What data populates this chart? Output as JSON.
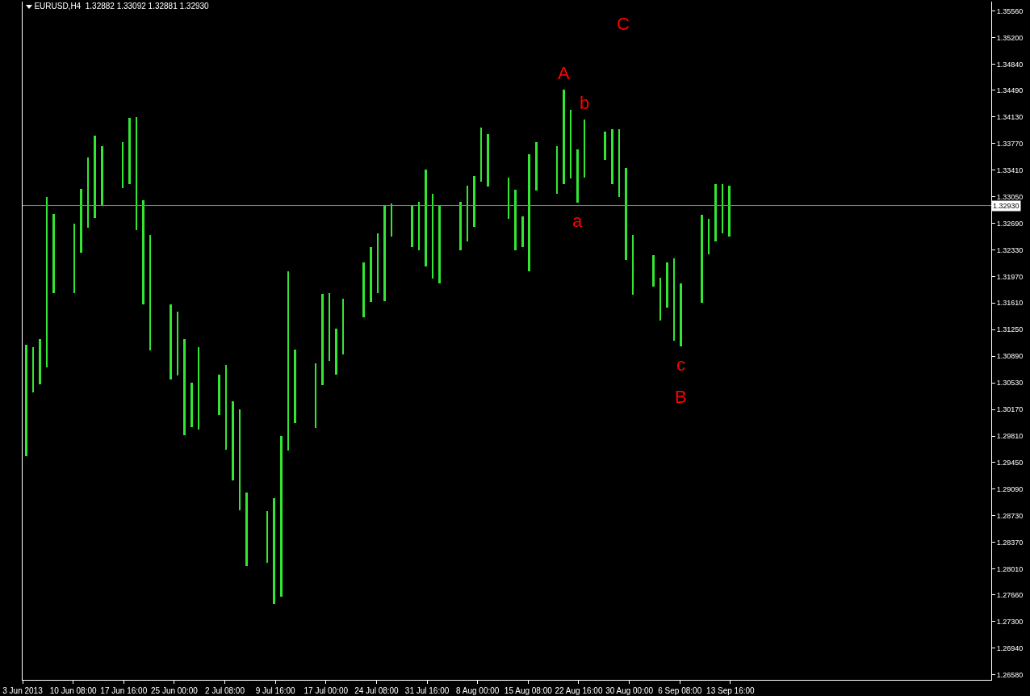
{
  "chart_data": {
    "type": "bar",
    "title": "EURUSD,H4  1.32882 1.33092 1.32881 1.32930",
    "color": "#32e632",
    "x": [
      "2013-06-03T12:00",
      "2013-06-04T12:00",
      "2013-06-05T12:00",
      "2013-06-06T12:00",
      "2013-06-07T12:00",
      "2013-06-10T12:00",
      "2013-06-11T12:00",
      "2013-06-12T12:00",
      "2013-06-13T12:00",
      "2013-06-14T12:00",
      "2013-06-17T12:00",
      "2013-06-18T12:00",
      "2013-06-19T12:00",
      "2013-06-20T12:00",
      "2013-06-21T12:00",
      "2013-06-24T12:00",
      "2013-06-25T12:00",
      "2013-06-26T12:00",
      "2013-06-27T12:00",
      "2013-06-28T12:00",
      "2013-07-01T12:00",
      "2013-07-02T12:00",
      "2013-07-03T12:00",
      "2013-07-04T12:00",
      "2013-07-05T12:00",
      "2013-07-08T12:00",
      "2013-07-09T12:00",
      "2013-07-10T12:00",
      "2013-07-11T12:00",
      "2013-07-12T12:00",
      "2013-07-15T12:00",
      "2013-07-16T12:00",
      "2013-07-17T12:00",
      "2013-07-18T12:00",
      "2013-07-19T12:00",
      "2013-07-22T12:00",
      "2013-07-23T12:00",
      "2013-07-24T12:00",
      "2013-07-25T12:00",
      "2013-07-26T12:00",
      "2013-07-29T12:00",
      "2013-07-30T12:00",
      "2013-07-31T12:00",
      "2013-08-01T12:00",
      "2013-08-02T12:00",
      "2013-08-05T12:00",
      "2013-08-06T12:00",
      "2013-08-07T12:00",
      "2013-08-08T12:00",
      "2013-08-09T12:00",
      "2013-08-12T12:00",
      "2013-08-13T12:00",
      "2013-08-14T12:00",
      "2013-08-15T12:00",
      "2013-08-16T12:00",
      "2013-08-19T12:00",
      "2013-08-20T12:00",
      "2013-08-21T12:00",
      "2013-08-22T12:00",
      "2013-08-23T12:00",
      "2013-08-26T12:00",
      "2013-08-27T12:00",
      "2013-08-28T12:00",
      "2013-08-29T12:00",
      "2013-08-30T12:00",
      "2013-09-02T12:00",
      "2013-09-03T12:00",
      "2013-09-04T12:00",
      "2013-09-05T12:00",
      "2013-09-06T12:00",
      "2013-09-09T12:00",
      "2013-09-10T12:00",
      "2013-09-11T12:00",
      "2013-09-12T12:00",
      "2013-09-13T12:00"
    ],
    "base": [
      1.2954,
      1.304,
      1.3051,
      1.3074,
      1.3175,
      1.3175,
      1.3229,
      1.3263,
      1.3276,
      1.3293,
      1.3317,
      1.3322,
      1.326,
      1.3159,
      1.3097,
      1.3058,
      1.3063,
      1.2982,
      1.2993,
      1.299,
      1.301,
      1.2963,
      1.2921,
      1.2881,
      1.2805,
      1.2809,
      1.2754,
      1.2764,
      1.2961,
      1.2999,
      1.2992,
      1.305,
      1.3083,
      1.3064,
      1.3091,
      1.3142,
      1.3162,
      1.3175,
      1.3164,
      1.3251,
      1.3237,
      1.3232,
      1.3211,
      1.3194,
      1.3188,
      1.3232,
      1.3244,
      1.3264,
      1.3325,
      1.3319,
      1.3275,
      1.3232,
      1.3237,
      1.3204,
      1.3313,
      1.3309,
      1.3322,
      1.333,
      1.3297,
      1.3331,
      1.3355,
      1.3322,
      1.3304,
      1.3219,
      1.3172,
      1.3183,
      1.3137,
      1.3155,
      1.311,
      1.3102,
      1.3161,
      1.3227,
      1.3244,
      1.3255,
      1.3251
    ],
    "values": [
      0.0151,
      0.0061,
      0.0061,
      0.023,
      0.0107,
      0.0093,
      0.0086,
      0.0095,
      0.0112,
      0.008,
      0.0062,
      0.009,
      0.0153,
      0.0141,
      0.0156,
      0.0101,
      0.0086,
      0.013,
      0.006,
      0.0111,
      0.0054,
      0.0114,
      0.0107,
      0.0136,
      0.01,
      0.007,
      0.0143,
      0.0217,
      0.0243,
      0.0099,
      0.0087,
      0.0123,
      0.0092,
      0.0062,
      0.0076,
      0.0074,
      0.0075,
      0.008,
      0.0129,
      0.0045,
      0.0057,
      0.0066,
      0.0131,
      0.0115,
      0.0105,
      0.0066,
      0.0076,
      0.0069,
      0.0073,
      0.0071,
      0.0056,
      0.0082,
      0.0041,
      0.0158,
      0.0066,
      0.0064,
      0.0128,
      0.0093,
      0.0072,
      0.0078,
      0.0038,
      0.0074,
      0.0092,
      0.0125,
      0.0081,
      0.0043,
      0.0058,
      0.0061,
      0.0111,
      0.0086,
      0.012,
      0.0048,
      0.0078,
      0.0067,
      0.0069
    ],
    "xlim": [
      "2013-06-03",
      "2013-10-21T12:00"
    ],
    "xticks": [
      {
        "value": "2013-06-03",
        "label": "3 Jun 2013"
      },
      {
        "value": "2013-06-10T08:00",
        "label": "10 Jun 08:00"
      },
      {
        "value": "2013-06-17T16:00",
        "label": "17 Jun 16:00"
      },
      {
        "value": "2013-06-25T00:00",
        "label": "25 Jun 00:00"
      },
      {
        "value": "2013-07-02T08:00",
        "label": "2 Jul 08:00"
      },
      {
        "value": "2013-07-09T16:00",
        "label": "9 Jul 16:00"
      },
      {
        "value": "2013-07-17T00:00",
        "label": "17 Jul 00:00"
      },
      {
        "value": "2013-07-24T08:00",
        "label": "24 Jul 08:00"
      },
      {
        "value": "2013-07-31T16:00",
        "label": "31 Jul 16:00"
      },
      {
        "value": "2013-08-08T00:00",
        "label": "8 Aug 00:00"
      },
      {
        "value": "2013-08-15T08:00",
        "label": "15 Aug 08:00"
      },
      {
        "value": "2013-08-22T16:00",
        "label": "22 Aug 16:00"
      },
      {
        "value": "2013-08-30T00:00",
        "label": "30 Aug 00:00"
      },
      {
        "value": "2013-09-06T08:00",
        "label": "6 Sep 08:00"
      },
      {
        "value": "2013-09-13T16:00",
        "label": "13 Sep 16:00"
      }
    ],
    "ylim": [
      1.2651,
      1.3569
    ],
    "yticks": [
      {
        "value": 1.2658,
        "label": "1.26580"
      },
      {
        "value": 1.2694,
        "label": "1.26940"
      },
      {
        "value": 1.273,
        "label": "1.27300"
      },
      {
        "value": 1.2766,
        "label": "1.27660"
      },
      {
        "value": 1.2801,
        "label": "1.28010"
      },
      {
        "value": 1.2837,
        "label": "1.28370"
      },
      {
        "value": 1.2873,
        "label": "1.28730"
      },
      {
        "value": 1.2909,
        "label": "1.29090"
      },
      {
        "value": 1.2945,
        "label": "1.29450"
      },
      {
        "value": 1.2981,
        "label": "1.29810"
      },
      {
        "value": 1.3017,
        "label": "1.30170"
      },
      {
        "value": 1.3053,
        "label": "1.30530"
      },
      {
        "value": 1.3089,
        "label": "1.30890"
      },
      {
        "value": 1.3125,
        "label": "1.31250"
      },
      {
        "value": 1.3161,
        "label": "1.31610"
      },
      {
        "value": 1.3197,
        "label": "1.31970"
      },
      {
        "value": 1.3233,
        "label": "1.32330"
      },
      {
        "value": 1.3269,
        "label": "1.32690"
      },
      {
        "value": 1.3305,
        "label": "1.33050"
      },
      {
        "value": 1.3341,
        "label": "1.33410"
      },
      {
        "value": 1.3377,
        "label": "1.33770"
      },
      {
        "value": 1.3413,
        "label": "1.34130"
      },
      {
        "value": 1.3449,
        "label": "1.34490"
      },
      {
        "value": 1.3484,
        "label": "1.34840"
      },
      {
        "value": 1.352,
        "label": "1.35200"
      },
      {
        "value": 1.3556,
        "label": "1.35560"
      }
    ],
    "ref_lines": [
      {
        "axis": "y",
        "value": 1.3293,
        "label": "1.32930",
        "color": "#778899"
      }
    ],
    "annotations": [
      {
        "text": "A",
        "x": "2013-08-20T12:00",
        "y": 1.345
      },
      {
        "text": "b",
        "x": "2013-08-23T12:00",
        "y": 1.3409
      },
      {
        "text": "a",
        "x": "2013-08-22T12:00",
        "y": 1.3297
      },
      {
        "text": "c",
        "x": "2013-09-06T12:00",
        "y": 1.3102
      },
      {
        "text": "B",
        "x": "2013-09-06T12:00",
        "y": 1.3102
      },
      "C"
    ]
  }
}
